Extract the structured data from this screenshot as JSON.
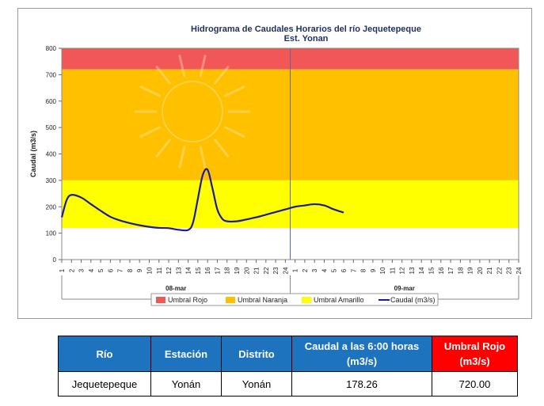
{
  "chart_data": {
    "type": "line",
    "title": "Hidrograma de Caudales Horarios del río Jequetepeque",
    "subtitle": "Est. Yonan",
    "ylabel": "Caudal  (m3/s)",
    "ylim": [
      0,
      800
    ],
    "yticks": [
      "0",
      "100",
      "200",
      "300",
      "400",
      "500",
      "600",
      "700",
      "800"
    ],
    "x_ticks": [
      "1",
      "2",
      "3",
      "4",
      "5",
      "6",
      "7",
      "8",
      "9",
      "10",
      "11",
      "12",
      "13",
      "14",
      "15",
      "16",
      "17",
      "18",
      "19",
      "20",
      "21",
      "22",
      "23",
      "24",
      "1",
      "2",
      "3",
      "4",
      "5",
      "6",
      "7",
      "8",
      "9",
      "10",
      "11",
      "12",
      "13",
      "14",
      "15",
      "16",
      "17",
      "18",
      "19",
      "20",
      "21",
      "22",
      "23",
      "24"
    ],
    "x_groups": [
      "08-mar",
      "09-mar"
    ],
    "thresholds": [
      {
        "name": "Umbral Rojo",
        "from": 720,
        "to": 800,
        "color": "#f25757"
      },
      {
        "name": "Umbral Naranja",
        "from": 300,
        "to": 720,
        "color": "#ffc000"
      },
      {
        "name": "Umbral Amarillo",
        "from": 120,
        "to": 300,
        "color": "#ffff00"
      }
    ],
    "series": [
      {
        "name": "Caudal (m3/s)",
        "color": "#1a1aa6",
        "x": [
          1,
          1.5,
          2,
          3,
          4,
          5,
          6,
          7,
          8,
          9,
          10,
          11,
          12,
          13,
          14,
          14.5,
          15,
          15.5,
          16,
          16.5,
          17,
          17.5,
          18,
          19,
          20,
          21,
          22,
          23,
          24,
          25,
          26,
          27,
          28,
          29,
          30
        ],
        "values": [
          160,
          225,
          245,
          235,
          210,
          185,
          162,
          148,
          138,
          130,
          124,
          120,
          119,
          113,
          112,
          140,
          230,
          320,
          340,
          270,
          190,
          155,
          145,
          145,
          152,
          160,
          170,
          180,
          190,
          200,
          205,
          210,
          205,
          190,
          178
        ]
      }
    ],
    "legend": [
      "Umbral Rojo",
      "Umbral Naranja",
      "Umbral Amarillo",
      "Caudal (m3/s)"
    ],
    "legend_position": "bottom"
  },
  "table": {
    "headers": {
      "rio": "Río",
      "estacion": "Estación",
      "distrito": "Distrito",
      "caudal_line1": "Caudal a las 6:00 horas",
      "caudal_line2": "(m3/s)",
      "umbral_line1": "Umbral Rojo",
      "umbral_line2": "(m3/s)"
    },
    "row": {
      "rio": "Jequetepeque",
      "estacion": "Yonán",
      "distrito": "Yonán",
      "caudal": "178.26",
      "umbral": "720.00"
    }
  }
}
